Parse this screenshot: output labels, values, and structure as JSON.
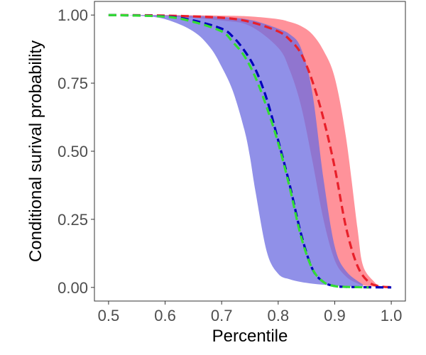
{
  "chart_data": {
    "type": "area",
    "title": "",
    "xlabel": "Percentile",
    "ylabel": "Conditional surival probability",
    "xlim": [
      0.475,
      1.025
    ],
    "ylim": [
      -0.05,
      1.05
    ],
    "x_ticks": [
      0.5,
      0.6,
      0.7,
      0.8,
      0.9,
      1.0
    ],
    "x_tick_labels": [
      "0.5",
      "0.6",
      "0.7",
      "0.8",
      "0.9",
      "1.0"
    ],
    "y_ticks": [
      0.0,
      0.25,
      0.5,
      0.75,
      1.0
    ],
    "y_tick_labels": [
      "0.00",
      "0.25",
      "0.50",
      "0.75",
      "1.00"
    ],
    "grid": false,
    "legend": "none",
    "colors": {
      "red_band": "#ff6e78",
      "blue_band": "#6b6be0",
      "red_line": "#e8202a",
      "blue_line": "#0000bb",
      "green_line": "#33dd33"
    },
    "bands": [
      {
        "color_key": "red_band",
        "x": [
          0.5,
          0.6,
          0.7,
          0.75,
          0.8,
          0.82,
          0.84,
          0.86,
          0.88,
          0.9,
          0.92,
          0.94,
          0.95,
          0.97,
          0.98
        ],
        "lower": [
          1.0,
          0.997,
          0.98,
          0.96,
          0.88,
          0.8,
          0.67,
          0.47,
          0.25,
          0.1,
          0.04,
          0.015,
          0.008,
          0.003,
          0.002
        ],
        "upper": [
          1.0,
          1.0,
          0.998,
          0.995,
          0.985,
          0.975,
          0.96,
          0.93,
          0.87,
          0.77,
          0.55,
          0.22,
          0.08,
          0.02,
          0.005
        ]
      },
      {
        "color_key": "blue_band",
        "x": [
          0.5,
          0.55,
          0.6,
          0.65,
          0.68,
          0.7,
          0.72,
          0.74,
          0.75,
          0.76,
          0.78,
          0.8,
          0.82,
          0.84,
          0.86,
          0.88,
          0.9,
          0.92,
          0.95
        ],
        "lower": [
          1.0,
          0.998,
          0.985,
          0.94,
          0.88,
          0.81,
          0.72,
          0.58,
          0.48,
          0.35,
          0.13,
          0.05,
          0.03,
          0.02,
          0.014,
          0.01,
          0.007,
          0.004,
          0.002
        ],
        "upper": [
          1.0,
          1.0,
          0.999,
          0.997,
          0.995,
          0.993,
          0.99,
          0.986,
          0.982,
          0.978,
          0.965,
          0.95,
          0.93,
          0.88,
          0.72,
          0.4,
          0.15,
          0.06,
          0.01
        ]
      }
    ],
    "series": [
      {
        "color_key": "red_line",
        "x": [
          0.5,
          0.6,
          0.7,
          0.75,
          0.8,
          0.82,
          0.84,
          0.86,
          0.88,
          0.9,
          0.92,
          0.94,
          0.96,
          0.98,
          1.0
        ],
        "values": [
          1.0,
          0.998,
          0.99,
          0.975,
          0.94,
          0.91,
          0.86,
          0.76,
          0.62,
          0.44,
          0.22,
          0.08,
          0.02,
          0.004,
          0.001
        ]
      },
      {
        "color_key": "blue_line",
        "x": [
          0.5,
          0.6,
          0.65,
          0.7,
          0.72,
          0.74,
          0.76,
          0.78,
          0.8,
          0.82,
          0.84,
          0.86,
          0.88,
          0.9,
          0.92,
          0.94,
          1.0
        ],
        "values": [
          1.0,
          0.995,
          0.98,
          0.95,
          0.92,
          0.87,
          0.8,
          0.69,
          0.54,
          0.38,
          0.2,
          0.07,
          0.02,
          0.005,
          0.002,
          0.001,
          0.0
        ]
      },
      {
        "color_key": "green_line",
        "x": [
          0.5,
          0.6,
          0.65,
          0.7,
          0.72,
          0.74,
          0.76,
          0.78,
          0.8,
          0.82,
          0.84,
          0.86,
          0.88,
          0.9,
          0.92,
          0.94,
          0.96
        ],
        "values": [
          1.0,
          0.994,
          0.975,
          0.94,
          0.9,
          0.85,
          0.77,
          0.66,
          0.53,
          0.37,
          0.19,
          0.07,
          0.02,
          0.005,
          0.002,
          0.001,
          0.0
        ]
      }
    ]
  }
}
